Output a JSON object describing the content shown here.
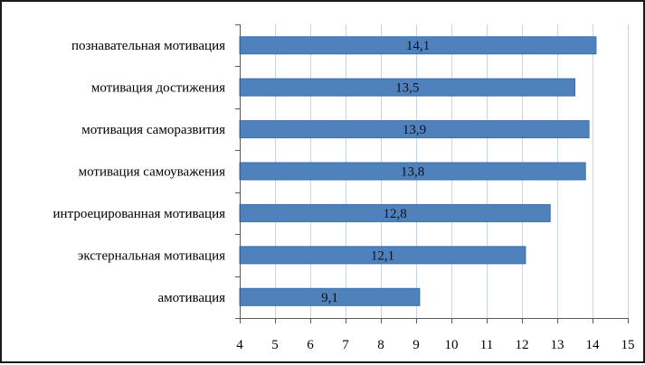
{
  "chart_data": {
    "type": "bar",
    "orientation": "horizontal",
    "categories": [
      "познавательная мотивация",
      "мотивация достижения",
      "мотивация саморазвития",
      "мотивация самоуважения",
      "интроецированная мотивация",
      "экстернальная мотивация",
      "амотивация"
    ],
    "values": [
      14.1,
      13.5,
      13.9,
      13.8,
      12.8,
      12.1,
      9.1
    ],
    "data_labels": [
      "14,1",
      "13,5",
      "13,9",
      "13,8",
      "12,8",
      "12,1",
      "9,1"
    ],
    "xlim": [
      4,
      15
    ],
    "xticks": [
      4,
      5,
      6,
      7,
      8,
      9,
      10,
      11,
      12,
      13,
      14,
      15
    ],
    "xtick_labels": [
      "4",
      "5",
      "6",
      "7",
      "8",
      "9",
      "10",
      "11",
      "12",
      "13",
      "14",
      "15"
    ],
    "title": "",
    "xlabel": "",
    "ylabel": "",
    "grid": "vertical major gridlines",
    "legend": "none",
    "bar_color": "#4f81bd",
    "bar_edge_color": "#3d6fa8",
    "grid_color": "#c6d6e8",
    "axis_color": "#5a5a5a"
  }
}
